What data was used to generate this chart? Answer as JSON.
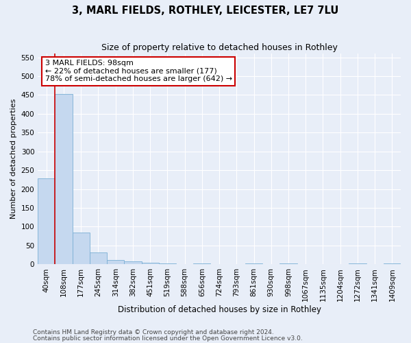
{
  "title1": "3, MARL FIELDS, ROTHLEY, LEICESTER, LE7 7LU",
  "title2": "Size of property relative to detached houses in Rothley",
  "xlabel": "Distribution of detached houses by size in Rothley",
  "ylabel": "Number of detached properties",
  "footer1": "Contains HM Land Registry data © Crown copyright and database right 2024.",
  "footer2": "Contains public sector information licensed under the Open Government Licence v3.0.",
  "categories": [
    "40sqm",
    "108sqm",
    "177sqm",
    "245sqm",
    "314sqm",
    "382sqm",
    "451sqm",
    "519sqm",
    "588sqm",
    "656sqm",
    "724sqm",
    "793sqm",
    "861sqm",
    "930sqm",
    "998sqm",
    "1067sqm",
    "1135sqm",
    "1204sqm",
    "1272sqm",
    "1341sqm",
    "1409sqm"
  ],
  "values": [
    228,
    452,
    84,
    32,
    12,
    7,
    5,
    2,
    0,
    2,
    0,
    0,
    2,
    0,
    2,
    0,
    0,
    0,
    2,
    0,
    2
  ],
  "bar_color": "#c5d8ef",
  "bar_edge_color": "#7aafd4",
  "annotation_text": "3 MARL FIELDS: 98sqm\n← 22% of detached houses are smaller (177)\n78% of semi-detached houses are larger (642) →",
  "annotation_box_color": "white",
  "annotation_box_edge_color": "#cc0000",
  "property_line_color": "#cc0000",
  "ylim": [
    0,
    560
  ],
  "yticks": [
    0,
    50,
    100,
    150,
    200,
    250,
    300,
    350,
    400,
    450,
    500,
    550
  ],
  "background_color": "#e8eef8",
  "grid_color": "white",
  "title1_fontsize": 10.5,
  "title2_fontsize": 9.0,
  "xlabel_fontsize": 8.5,
  "ylabel_fontsize": 8.0,
  "tick_fontsize": 7.5,
  "annot_fontsize": 8.0,
  "footer_fontsize": 6.5
}
